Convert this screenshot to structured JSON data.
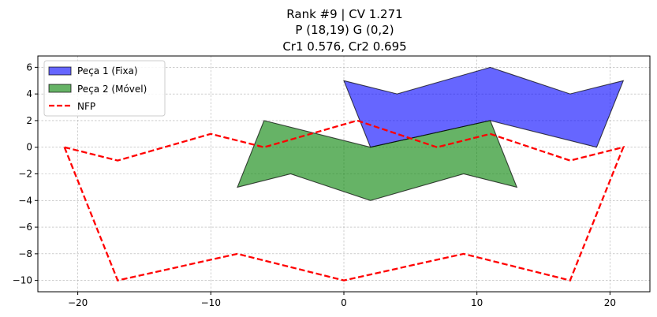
{
  "chart_data": {
    "type": "line",
    "title_lines": [
      "Rank #9 | CV 1.271",
      "P (18,19) G (0,2)",
      "Cr1 0.576, Cr2 0.695"
    ],
    "xlabel": "",
    "ylabel": "",
    "xlim": [
      -23,
      23
    ],
    "ylim": [
      -10.85,
      6.85
    ],
    "x_ticks": [
      -20,
      -10,
      0,
      10,
      20
    ],
    "y_ticks": [
      -10,
      -8,
      -6,
      -4,
      -2,
      0,
      2,
      4,
      6
    ],
    "grid": true,
    "legend_position": "top-left",
    "series": [
      {
        "name": "Peça 1 (Fixa)",
        "kind": "polygon",
        "color": "#0000ff",
        "fill_opacity": 0.6,
        "points": [
          [
            0,
            5
          ],
          [
            4,
            4
          ],
          [
            11,
            6
          ],
          [
            17,
            4
          ],
          [
            21,
            5
          ],
          [
            19,
            0
          ],
          [
            11,
            2
          ],
          [
            2,
            0
          ]
        ]
      },
      {
        "name": "Peça 2 (Móvel)",
        "kind": "polygon",
        "color": "#008000",
        "fill_opacity": 0.6,
        "points": [
          [
            -6,
            2
          ],
          [
            2,
            0
          ],
          [
            11,
            2
          ],
          [
            13,
            -3
          ],
          [
            9,
            -2
          ],
          [
            2,
            -4
          ],
          [
            -4,
            -2
          ],
          [
            -8,
            -3
          ]
        ]
      },
      {
        "name": "NFP",
        "kind": "dashed-line",
        "color": "#ff0000",
        "points": [
          [
            -21,
            0
          ],
          [
            -17,
            -1
          ],
          [
            -10,
            1
          ],
          [
            -6,
            0
          ],
          [
            1,
            2
          ],
          [
            7,
            0
          ],
          [
            11,
            1
          ],
          [
            17,
            -1
          ],
          [
            21,
            0
          ],
          [
            17,
            -10
          ],
          [
            9,
            -8
          ],
          [
            0,
            -10
          ],
          [
            -8,
            -8
          ],
          [
            -17,
            -10
          ],
          [
            -21,
            0
          ]
        ]
      }
    ]
  }
}
